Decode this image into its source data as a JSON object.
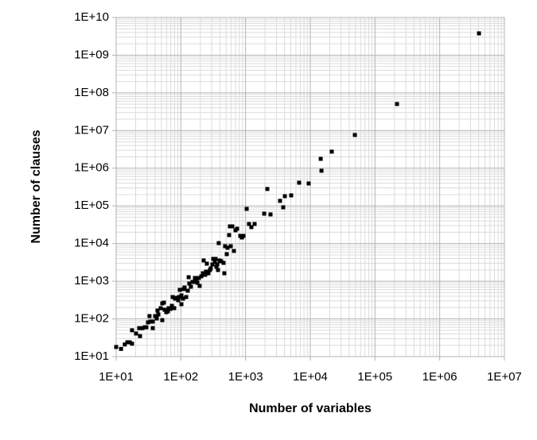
{
  "chart_data": {
    "type": "scatter",
    "x_label": "Number of variables",
    "y_label": "Number of clauses",
    "log_x": true,
    "log_y": true,
    "grid": true,
    "minor_grid": true,
    "color": "#000000",
    "xlim": [
      10,
      10000000
    ],
    "ylim": [
      10,
      10000000000
    ],
    "xticks": [
      {
        "value": 10,
        "label": "1E+01"
      },
      {
        "value": 100,
        "label": "1E+02"
      },
      {
        "value": 1000,
        "label": "1E+03"
      },
      {
        "value": 10000,
        "label": "1E+04"
      },
      {
        "value": 100000,
        "label": "1E+05"
      },
      {
        "value": 1000000,
        "label": "1E+06"
      },
      {
        "value": 10000000,
        "label": "1E+07"
      }
    ],
    "yticks": [
      {
        "value": 10,
        "label": "1E+01"
      },
      {
        "value": 100,
        "label": "1E+02"
      },
      {
        "value": 1000,
        "label": "1E+03"
      },
      {
        "value": 10000,
        "label": "1E+04"
      },
      {
        "value": 100000,
        "label": "1E+05"
      },
      {
        "value": 1000000,
        "label": "1E+06"
      },
      {
        "value": 10000000,
        "label": "1E+07"
      },
      {
        "value": 100000000,
        "label": "1E+08"
      },
      {
        "value": 1000000000,
        "label": "1E+09"
      },
      {
        "value": 10000000000,
        "label": "1E+10"
      }
    ],
    "x": [
      10,
      11.9,
      13.6,
      14.9,
      16.2,
      17.6,
      17.6,
      20.3,
      22.7,
      23.4,
      25.5,
      27.7,
      29.3,
      31,
      32.8,
      33.8,
      36.8,
      36.8,
      40,
      42.4,
      43.6,
      44.9,
      48.8,
      51.6,
      51.6,
      54.7,
      56.2,
      59.5,
      63,
      64.8,
      68.6,
      72.6,
      74.6,
      79,
      81.3,
      86,
      91,
      93.6,
      96.3,
      102,
      102,
      108,
      111,
      114,
      121,
      128,
      132,
      135,
      143,
      151,
      156,
      165,
      170,
      175,
      180,
      190,
      195,
      207,
      219,
      225,
      238,
      245,
      252,
      267,
      282,
      290,
      307,
      316,
      335,
      344,
      354,
      365,
      375,
      385,
      397,
      420,
      457,
      470,
      483,
      512,
      526,
      557,
      573,
      590,
      624,
      661,
      699,
      740,
      828,
      877,
      927,
      1040,
      1130,
      1230,
      1380,
      1940,
      2170,
      2430,
      3410,
      3820,
      4050,
      5070,
      6730,
      9450,
      14500,
      14900,
      21500,
      48900,
      219000,
      4050000
    ],
    "values": [
      18,
      16,
      21,
      24,
      24,
      22,
      50,
      41,
      57,
      35,
      57,
      60,
      60,
      81,
      119,
      85,
      85,
      57,
      119,
      103,
      167,
      131,
      193,
      258,
      93,
      271,
      175,
      151,
      159,
      193,
      184,
      223,
      381,
      193,
      346,
      363,
      314,
      381,
      590,
      420,
      246,
      346,
      620,
      682,
      381,
      562,
      1280,
      869,
      716,
      959,
      959,
      1220,
      1060,
      1110,
      912,
      1220,
      752,
      1350,
      1630,
      3560,
      1480,
      1800,
      2930,
      1630,
      1990,
      2190,
      2790,
      3920,
      3220,
      3920,
      2410,
      2790,
      1990,
      10300,
      3560,
      3390,
      3070,
      1630,
      8510,
      5240,
      7730,
      16800,
      28600,
      8510,
      28600,
      6370,
      22500,
      24800,
      16000,
      14500,
      16000,
      83400,
      33100,
      27300,
      33100,
      62200,
      281000,
      59300,
      136000,
      91800,
      181000,
      190000,
      413000,
      394000,
      1770000,
      857000,
      2750000,
      7600000,
      50500000,
      3790000000
    ]
  }
}
